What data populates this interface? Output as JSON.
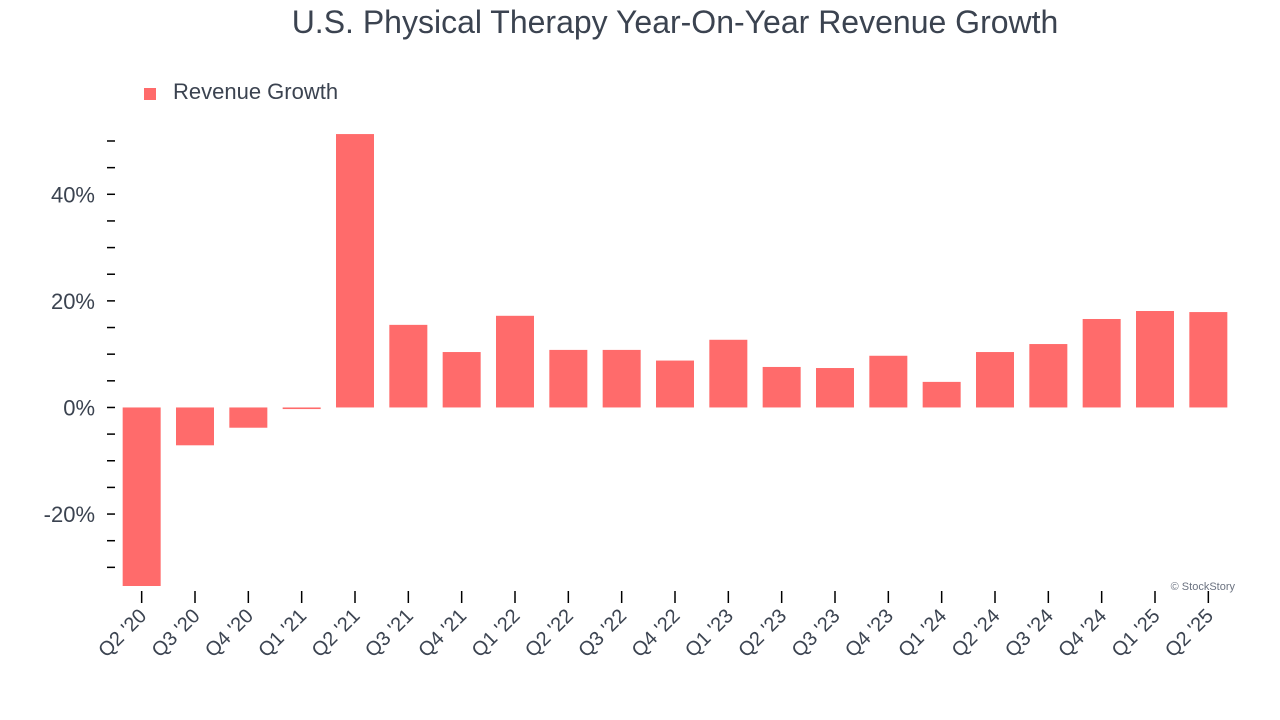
{
  "chart_data": {
    "type": "bar",
    "title": "U.S. Physical Therapy Year-On-Year Revenue Growth",
    "xlabel": "",
    "ylabel": "",
    "ylim": [
      -33.5,
      51.5
    ],
    "yticks": [
      -20,
      0,
      20,
      40
    ],
    "ytick_labels": [
      "-20%",
      "0%",
      "20%",
      "40%"
    ],
    "minor_tick_step": 5,
    "grid": false,
    "legend_position": "top-left",
    "categories": [
      "Q2 '20",
      "Q3 '20",
      "Q4 '20",
      "Q1 '21",
      "Q2 '21",
      "Q3 '21",
      "Q4 '21",
      "Q1 '22",
      "Q2 '22",
      "Q3 '22",
      "Q4 '22",
      "Q1 '23",
      "Q2 '23",
      "Q3 '23",
      "Q4 '23",
      "Q1 '24",
      "Q2 '24",
      "Q3 '24",
      "Q4 '24",
      "Q1 '25",
      "Q2 '25"
    ],
    "series": [
      {
        "name": "Revenue Growth",
        "color": "#ff6b6b",
        "values": [
          -33.5,
          -7.1,
          -3.8,
          -0.3,
          51.3,
          15.5,
          10.4,
          17.2,
          10.8,
          10.8,
          8.8,
          12.7,
          7.6,
          7.4,
          9.7,
          4.8,
          10.4,
          11.9,
          16.6,
          18.1,
          17.9
        ]
      }
    ]
  },
  "watermark": "© StockStory",
  "colors": {
    "bar": "#ff6b6b",
    "text": "#3b4350",
    "axis": "#000000",
    "background": "#ffffff"
  }
}
